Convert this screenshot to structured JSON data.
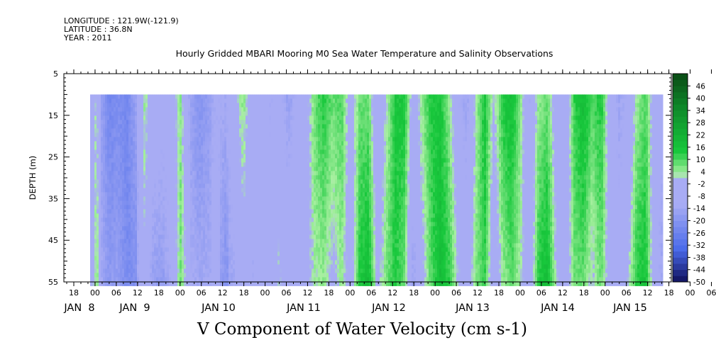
{
  "header": {
    "longitude": "LONGITUDE : 121.9W(-121.9)",
    "latitude": "LATITUDE : 36.8N",
    "year": "YEAR : 2011"
  },
  "chart_data": {
    "type": "heatmap",
    "title": "Hourly Gridded MBARI Mooring M0 Sea Water Temperature and Salinity Observations",
    "xlabel": "",
    "ylabel": "DEPTH (m)",
    "bottom_title": "V Component of Water Velocity (cm s-1)",
    "ylim": [
      55,
      5
    ],
    "y_ticks": [
      5,
      15,
      25,
      35,
      45,
      55
    ],
    "y_tick_labels": [
      "5",
      "15",
      "25",
      "35",
      "45",
      "55"
    ],
    "data_depth_range": [
      10,
      55
    ],
    "x_hour_labels": [
      "18",
      "00",
      "06",
      "12",
      "18",
      "00",
      "06",
      "12",
      "18",
      "00",
      "06",
      "12",
      "18",
      "00",
      "06",
      "12",
      "18",
      "00",
      "06",
      "12",
      "18",
      "00",
      "06",
      "12",
      "18",
      "00",
      "06",
      "12",
      "18",
      "00",
      "06",
      "12"
    ],
    "x_day_labels": [
      "JAN  8",
      "JAN  9",
      "JAN 10",
      "JAN 11",
      "JAN 12",
      "JAN 13",
      "JAN 14",
      "JAN 15"
    ],
    "colorbar": {
      "labels": [
        "46",
        "40",
        "34",
        "28",
        "22",
        "16",
        "10",
        "4",
        "-2",
        "-8",
        "-14",
        "-20",
        "-26",
        "-32",
        "-38",
        "-44",
        "-50"
      ],
      "min": -50,
      "max": 52,
      "step": 3
    },
    "colors": {
      "deep_green": "#0a4a14",
      "green": "#18c83c",
      "light_green": "#a8f0a0",
      "light_blue": "#a8acf4",
      "blue": "#4a6aea",
      "navy": "#10105a"
    },
    "time_profile": [
      {
        "t": 0.0,
        "v": -6
      },
      {
        "t": 0.3,
        "v": 4
      },
      {
        "t": 0.6,
        "v": -14
      },
      {
        "t": 1.0,
        "v": -20
      },
      {
        "t": 1.5,
        "v": -18
      },
      {
        "t": 2.0,
        "v": -22
      },
      {
        "t": 2.5,
        "v": -16
      },
      {
        "t": 3.0,
        "v": 2
      },
      {
        "t": 3.4,
        "v": -10
      },
      {
        "t": 4.0,
        "v": -12
      },
      {
        "t": 4.5,
        "v": -8
      },
      {
        "t": 5.0,
        "v": 6
      },
      {
        "t": 5.5,
        "v": -12
      },
      {
        "t": 6.0,
        "v": -16
      },
      {
        "t": 6.5,
        "v": -14
      },
      {
        "t": 7.0,
        "v": -10
      },
      {
        "t": 7.5,
        "v": -14
      },
      {
        "t": 8.0,
        "v": -8
      },
      {
        "t": 8.5,
        "v": 2
      },
      {
        "t": 9.0,
        "v": -8
      },
      {
        "t": 9.5,
        "v": -6
      },
      {
        "t": 10.0,
        "v": -10
      },
      {
        "t": 10.5,
        "v": -4
      },
      {
        "t": 11.0,
        "v": -12
      },
      {
        "t": 11.5,
        "v": -8
      },
      {
        "t": 12.0,
        "v": -4
      },
      {
        "t": 12.5,
        "v": 6
      },
      {
        "t": 13.0,
        "v": 10
      },
      {
        "t": 13.5,
        "v": 4
      },
      {
        "t": 14.0,
        "v": 8
      },
      {
        "t": 14.5,
        "v": -6
      },
      {
        "t": 15.0,
        "v": 10
      },
      {
        "t": 15.5,
        "v": 12
      },
      {
        "t": 16.0,
        "v": -8
      },
      {
        "t": 16.5,
        "v": 4
      },
      {
        "t": 17.0,
        "v": 14
      },
      {
        "t": 17.5,
        "v": 12
      },
      {
        "t": 18.0,
        "v": -10
      },
      {
        "t": 18.5,
        "v": 2
      },
      {
        "t": 19.0,
        "v": 12
      },
      {
        "t": 19.5,
        "v": 16
      },
      {
        "t": 20.0,
        "v": 8
      },
      {
        "t": 20.5,
        "v": -6
      },
      {
        "t": 21.0,
        "v": -12
      },
      {
        "t": 21.5,
        "v": 4
      },
      {
        "t": 22.0,
        "v": 14
      },
      {
        "t": 22.5,
        "v": -4
      },
      {
        "t": 23.0,
        "v": 10
      },
      {
        "t": 23.5,
        "v": 14
      },
      {
        "t": 24.0,
        "v": 4
      },
      {
        "t": 24.5,
        "v": -10
      },
      {
        "t": 25.0,
        "v": 8
      },
      {
        "t": 25.5,
        "v": 12
      },
      {
        "t": 26.0,
        "v": -4
      },
      {
        "t": 26.5,
        "v": -8
      },
      {
        "t": 27.0,
        "v": 10
      },
      {
        "t": 27.5,
        "v": 14
      },
      {
        "t": 28.0,
        "v": 6
      },
      {
        "t": 28.5,
        "v": 12
      },
      {
        "t": 29.0,
        "v": -6
      },
      {
        "t": 29.5,
        "v": -12
      },
      {
        "t": 30.0,
        "v": -6
      },
      {
        "t": 30.5,
        "v": 8
      },
      {
        "t": 31.0,
        "v": 12
      },
      {
        "t": 31.5,
        "v": -8
      },
      {
        "t": 32.0,
        "v": -12
      }
    ]
  }
}
